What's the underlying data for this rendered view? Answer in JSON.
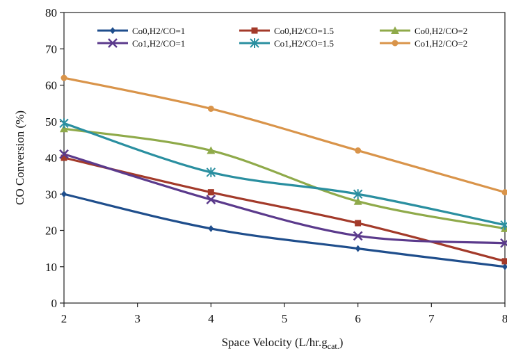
{
  "chart_data": {
    "type": "line",
    "title": "",
    "xlabel": "Space Velocity (L/hr.g",
    "xlabel_sub": "cat.",
    "xlabel_close": ")",
    "ylabel": "CO Conversion (%)",
    "xlim": [
      2,
      8
    ],
    "ylim": [
      0,
      80
    ],
    "xticks": [
      2,
      3,
      4,
      5,
      6,
      7,
      8
    ],
    "yticks": [
      0,
      10,
      20,
      30,
      40,
      50,
      60,
      70,
      80
    ],
    "grid": false,
    "legend_position": "top",
    "series": [
      {
        "name": "Co0,H2/CO=1",
        "color": "#1f4e8c",
        "marker": "diamond",
        "x": [
          2,
          4,
          6,
          8
        ],
        "y": [
          30,
          20.5,
          15,
          10
        ]
      },
      {
        "name": "Co0,H2/CO=1.5",
        "color": "#a33a2a",
        "marker": "square",
        "x": [
          2,
          4,
          6,
          8
        ],
        "y": [
          40,
          30.5,
          22,
          11.5
        ]
      },
      {
        "name": "Co0,H2/CO=2",
        "color": "#8faa4a",
        "marker": "triangle",
        "x": [
          2,
          4,
          6,
          8
        ],
        "y": [
          48,
          42,
          28,
          20.5
        ]
      },
      {
        "name": "Co1,H2/CO=1",
        "color": "#5b3a8c",
        "marker": "x",
        "x": [
          2,
          4,
          6,
          8
        ],
        "y": [
          41,
          28.5,
          18.5,
          16.5
        ]
      },
      {
        "name": "Co1,H2/CO=1.5",
        "color": "#2a8fa0",
        "marker": "star",
        "x": [
          2,
          4,
          6,
          8
        ],
        "y": [
          49.5,
          36,
          30,
          21.5
        ]
      },
      {
        "name": "Co1,H2/CO=2",
        "color": "#d9944a",
        "marker": "circle",
        "x": [
          2,
          4,
          6,
          8
        ],
        "y": [
          62,
          53.5,
          42,
          30.5
        ]
      }
    ]
  }
}
